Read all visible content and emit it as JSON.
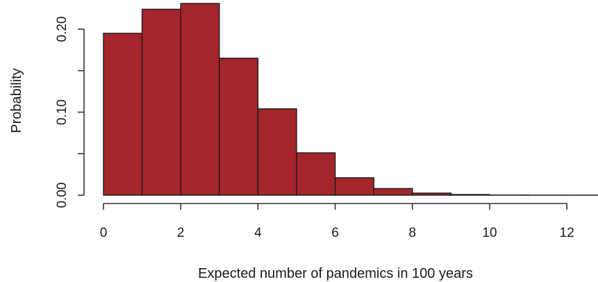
{
  "chart_data": {
    "type": "bar",
    "title": "",
    "xlabel": "Expected number of pandemics in 100 years",
    "ylabel": "Probability",
    "bin_edges": [
      0,
      1,
      2,
      3,
      4,
      5,
      6,
      7,
      8,
      9,
      10,
      11,
      12,
      13
    ],
    "values": [
      0.195,
      0.224,
      0.231,
      0.165,
      0.104,
      0.051,
      0.021,
      0.008,
      0.0025,
      0.0008,
      0.0002,
      0.0001,
      0.0001
    ],
    "xlim": [
      0,
      13
    ],
    "ylim": [
      0,
      0.235
    ],
    "x_ticks": [
      0,
      2,
      4,
      6,
      8,
      10,
      12
    ],
    "x_tick_labels": [
      "0",
      "2",
      "4",
      "6",
      "8",
      "10",
      "12"
    ],
    "y_ticks": [
      0,
      0.05,
      0.1,
      0.15,
      0.2
    ],
    "y_tick_labels": [
      "0.00",
      "",
      "0.10",
      "",
      "0.20"
    ],
    "grid": false,
    "bar_color": "#a4262c",
    "edge_color": "#1a1a1a"
  }
}
